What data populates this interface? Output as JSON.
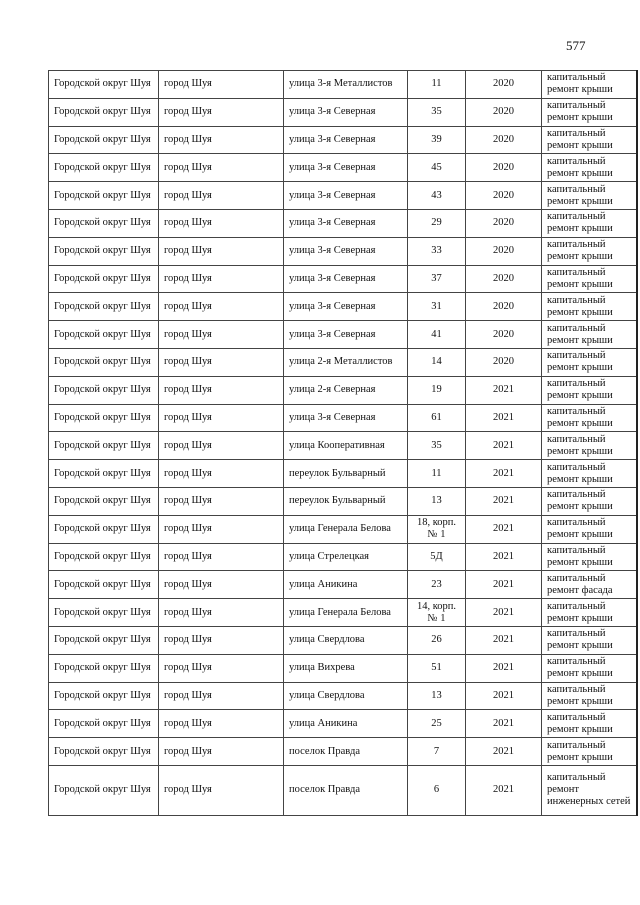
{
  "page_number": "577",
  "rows": [
    [
      "Городской округ Шуя",
      "город Шуя",
      "улица 3-я Металлистов",
      "11",
      "2020",
      "капитальный ремонт крыши"
    ],
    [
      "Городской округ Шуя",
      "город Шуя",
      "улица 3-я Северная",
      "35",
      "2020",
      "капитальный ремонт крыши"
    ],
    [
      "Городской округ Шуя",
      "город Шуя",
      "улица 3-я Северная",
      "39",
      "2020",
      "капитальный ремонт крыши"
    ],
    [
      "Городской округ Шуя",
      "город Шуя",
      "улица 3-я Северная",
      "45",
      "2020",
      "капитальный ремонт крыши"
    ],
    [
      "Городской округ Шуя",
      "город Шуя",
      "улица 3-я Северная",
      "43",
      "2020",
      "капитальный ремонт крыши"
    ],
    [
      "Городской округ Шуя",
      "город Шуя",
      "улица 3-я Северная",
      "29",
      "2020",
      "капитальный ремонт крыши"
    ],
    [
      "Городской округ Шуя",
      "город Шуя",
      "улица 3-я Северная",
      "33",
      "2020",
      "капитальный ремонт крыши"
    ],
    [
      "Городской округ Шуя",
      "город Шуя",
      "улица 3-я Северная",
      "37",
      "2020",
      "капитальный ремонт крыши"
    ],
    [
      "Городской округ Шуя",
      "город Шуя",
      "улица 3-я Северная",
      "31",
      "2020",
      "капитальный ремонт крыши"
    ],
    [
      "Городской округ Шуя",
      "город Шуя",
      "улица 3-я Северная",
      "41",
      "2020",
      "капитальный ремонт крыши"
    ],
    [
      "Городской округ Шуя",
      "город Шуя",
      "улица 2-я Металлистов",
      "14",
      "2020",
      "капитальный ремонт крыши"
    ],
    [
      "Городской округ Шуя",
      "город Шуя",
      "улица 2-я Северная",
      "19",
      "2021",
      "капитальный ремонт крыши"
    ],
    [
      "Городской округ Шуя",
      "город Шуя",
      "улица 3-я Северная",
      "61",
      "2021",
      "капитальный ремонт крыши"
    ],
    [
      "Городской округ Шуя",
      "город Шуя",
      "улица Кооперативная",
      "35",
      "2021",
      "капитальный ремонт крыши"
    ],
    [
      "Городской округ Шуя",
      "город Шуя",
      "переулок Бульварный",
      "11",
      "2021",
      "капитальный ремонт крыши"
    ],
    [
      "Городской округ Шуя",
      "город Шуя",
      "переулок Бульварный",
      "13",
      "2021",
      "капитальный ремонт крыши"
    ],
    [
      "Городской округ Шуя",
      "город Шуя",
      "улица Генерала Белова",
      "18, корп. № 1",
      "2021",
      "капитальный ремонт крыши"
    ],
    [
      "Городской округ Шуя",
      "город Шуя",
      "улица Стрелецкая",
      "5Д",
      "2021",
      "капитальный ремонт крыши"
    ],
    [
      "Городской округ Шуя",
      "город Шуя",
      "улица Аникина",
      "23",
      "2021",
      "капитальный ремонт фасада"
    ],
    [
      "Городской округ Шуя",
      "город Шуя",
      "улица Генерала Белова",
      "14, корп. № 1",
      "2021",
      "капитальный ремонт крыши"
    ],
    [
      "Городской округ Шуя",
      "город Шуя",
      "улица Свердлова",
      "26",
      "2021",
      "капитальный ремонт крыши"
    ],
    [
      "Городской округ Шуя",
      "город Шуя",
      "улица Вихрева",
      "51",
      "2021",
      "капитальный ремонт крыши"
    ],
    [
      "Городской округ Шуя",
      "город Шуя",
      "улица Свердлова",
      "13",
      "2021",
      "капитальный ремонт крыши"
    ],
    [
      "Городской округ Шуя",
      "город Шуя",
      "улица Аникина",
      "25",
      "2021",
      "капитальный ремонт крыши"
    ],
    [
      "Городской округ Шуя",
      "город Шуя",
      "поселок Правда",
      "7",
      "2021",
      "капитальный ремонт крыши"
    ],
    [
      "Городской округ Шуя",
      "город Шуя",
      "поселок Правда",
      "6",
      "2021",
      "капитальный ремонт инженерных сетей"
    ]
  ]
}
